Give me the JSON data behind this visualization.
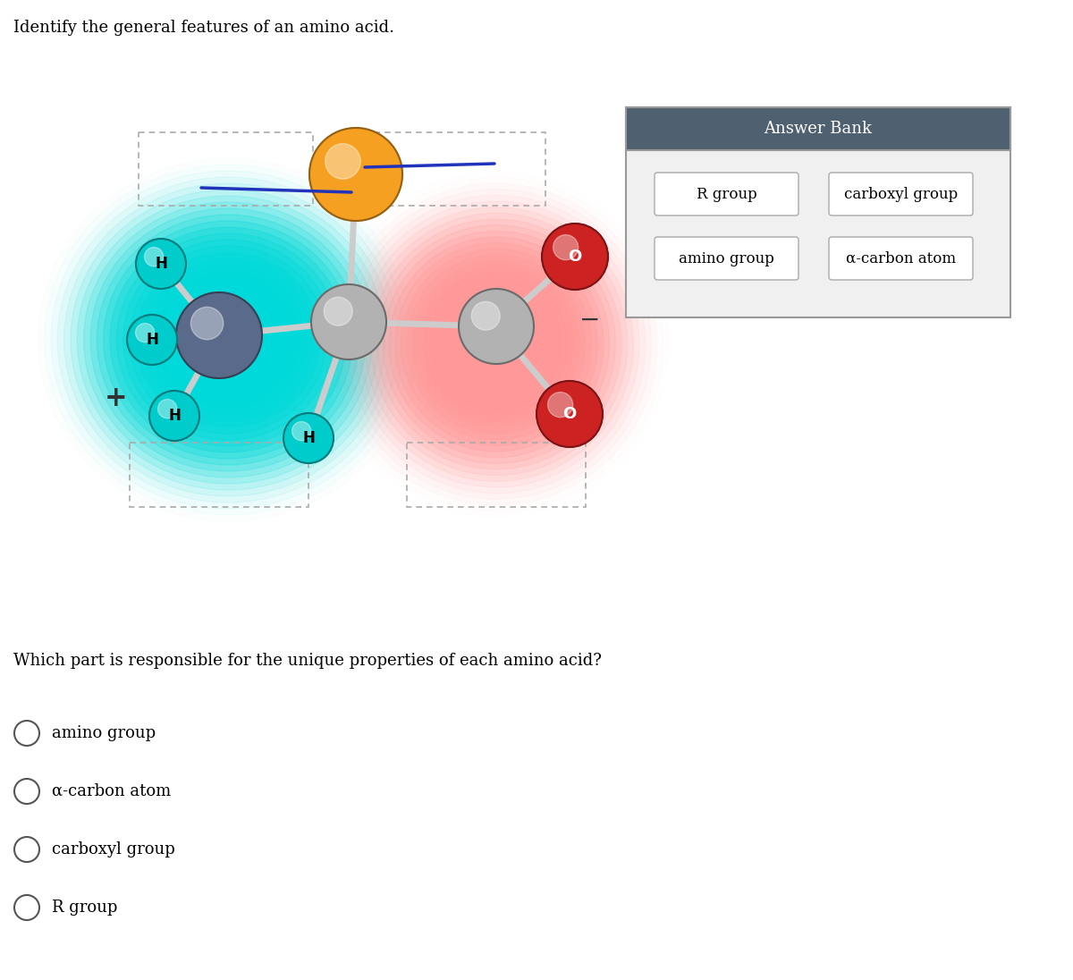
{
  "title": "Identify the general features of an amino acid.",
  "question": "Which part is responsible for the unique properties of each amino acid?",
  "options": [
    "amino group",
    "α-carbon atom",
    "carboxyl group",
    "R group"
  ],
  "answer_bank_title": "Answer Bank",
  "answer_bank_items": [
    [
      "R group",
      "carboxyl group"
    ],
    [
      "amino group",
      "α-carbon atom"
    ]
  ],
  "bg_color": "#ffffff",
  "title_fontsize": 13,
  "question_fontsize": 13,
  "option_fontsize": 13,
  "answer_bank_header_color": "#4f6070",
  "answer_bank_header_text_color": "#ffffff",
  "cyan_glow_color": [
    0,
    0.85,
    0.85
  ],
  "red_glow_color": [
    1.0,
    0.6,
    0.6
  ],
  "atom_alpha_carbon_color": "#b2b2b2",
  "atom_nitrogen_color": "#5a6a8a",
  "atom_hydrogen_color": "#00cccc",
  "atom_oxygen_color": "#cc2222",
  "atom_orange_color": "#f5a020",
  "bond_color": "#cccccc",
  "blue_line_color": "#2233bb",
  "minus_color": "#333333",
  "plus_color": "#333333"
}
